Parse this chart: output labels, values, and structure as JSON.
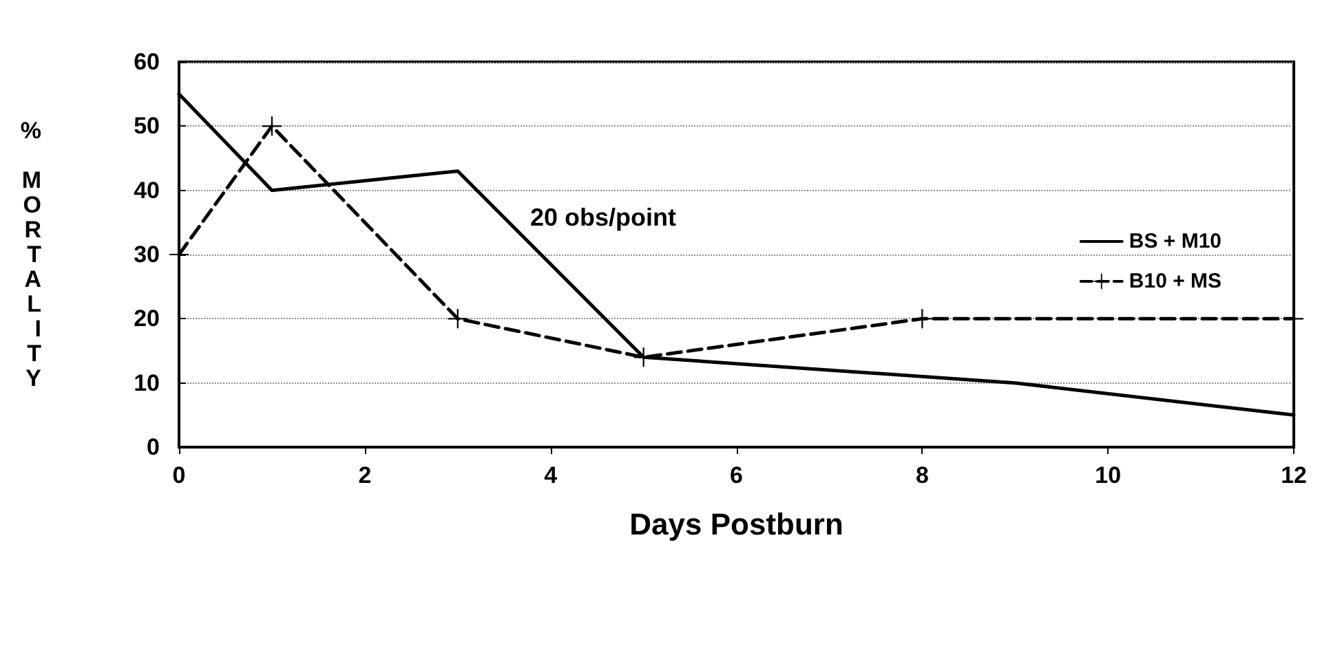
{
  "chart_data": {
    "type": "line",
    "xlabel": "Days Postburn",
    "ylabel": "% MORTALITY",
    "xlim": [
      0,
      12
    ],
    "xticks": [
      0,
      2,
      4,
      6,
      8,
      10,
      12
    ],
    "ylim": [
      0,
      60
    ],
    "yticks": [
      0,
      10,
      20,
      30,
      40,
      50,
      60
    ],
    "grid": "y",
    "legend": "right",
    "annotations": [
      "20 obs/point"
    ],
    "series": [
      {
        "name": "BS + M10",
        "color": "#000000",
        "line_style": "solid",
        "marker": "none",
        "x": [
          0,
          1,
          3,
          5,
          9,
          12
        ],
        "values": [
          55,
          40,
          43,
          14,
          10,
          5
        ]
      },
      {
        "name": "B10 + MS",
        "color": "#000000",
        "line_style": "dashed",
        "marker": "cross",
        "x": [
          0,
          1,
          3,
          5,
          8,
          12
        ],
        "values": [
          30,
          50,
          20,
          14,
          20,
          20
        ]
      }
    ]
  }
}
